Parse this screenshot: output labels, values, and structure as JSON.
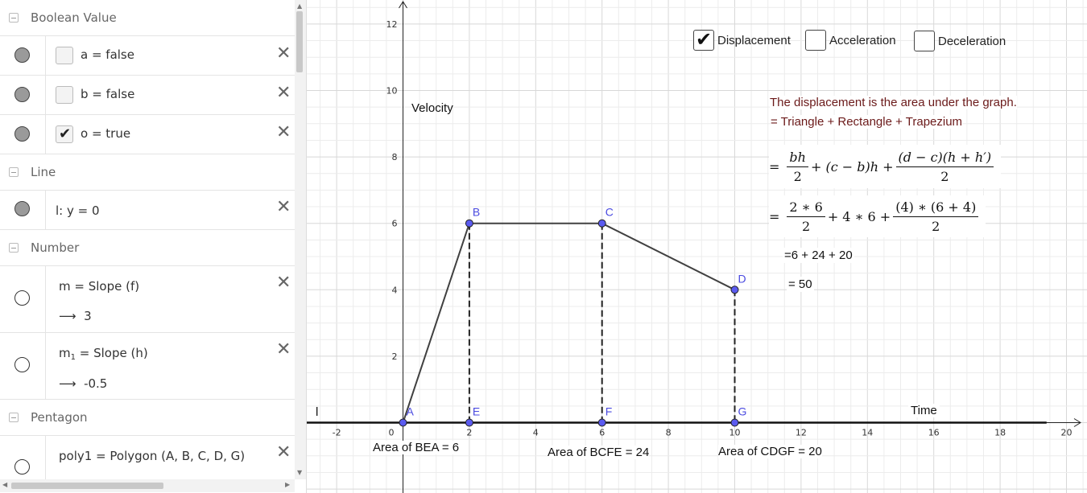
{
  "algebra": {
    "categories": {
      "boolean": "Boolean Value",
      "line": "Line",
      "number": "Number",
      "pentagon": "Pentagon"
    },
    "booleans": [
      {
        "text": "a  =  false",
        "checked": false
      },
      {
        "text": "b  =  false",
        "checked": false
      },
      {
        "text": "o  =  true",
        "checked": true
      }
    ],
    "line_item": {
      "text": "l:  y  =  0"
    },
    "numbers": [
      {
        "def_name": "m",
        "def_sub": "",
        "def_rest": "  =  Slope (f)",
        "arrow": "⟶",
        "value": "3"
      },
      {
        "def_name": "m",
        "def_sub": "1",
        "def_rest": "  =  Slope (h)",
        "arrow": "⟶",
        "value": "-0.5"
      }
    ],
    "polygon": {
      "text": "poly1  =  Polygon (A, B, C, D, G)"
    },
    "delete_glyph": "✕"
  },
  "graphics": {
    "checkboxes": [
      {
        "label": "Displacement",
        "checked": true
      },
      {
        "label": "Acceleration",
        "checked": false
      },
      {
        "label": "Deceleration",
        "checked": false
      }
    ],
    "y_axis_label": "Velocity",
    "x_axis_label": "Time",
    "line_label": "l",
    "explanation": {
      "line1": "The displacement is the area under the graph.",
      "line2": "= Triangle + Rectangle + Trapezium",
      "step3": "=6 + 24 + 20",
      "step4": "= 50"
    },
    "formula1": {
      "eq": "=",
      "f1_num": "bh",
      "f1_den": "2",
      "mid": "+ (c − b)h +",
      "f2_num": "(d − c)(h + h′)",
      "f2_den": "2"
    },
    "formula2": {
      "eq": "=",
      "f1_num": "2 ∗ 6",
      "f1_den": "2",
      "mid": "+ 4 ∗ 6  +",
      "f2_num": "(4) ∗ (6 + 4)",
      "f2_den": "2"
    },
    "area_labels": {
      "bea": "Area of  BEA = 6",
      "bcfe": "Area of  BCFE = 24",
      "cdgf": "Area of  CDGF = 20"
    },
    "points": [
      {
        "name": "A",
        "x": 0,
        "y": 0
      },
      {
        "name": "B",
        "x": 2,
        "y": 6
      },
      {
        "name": "C",
        "x": 6,
        "y": 6
      },
      {
        "name": "D",
        "x": 10,
        "y": 4
      },
      {
        "name": "E",
        "x": 2,
        "y": 0
      },
      {
        "name": "F",
        "x": 6,
        "y": 0
      },
      {
        "name": "G",
        "x": 10,
        "y": 0
      }
    ],
    "x_ticks": [
      "-2",
      "2",
      "4",
      "6",
      "8",
      "10",
      "12",
      "14",
      "16",
      "18",
      "20"
    ],
    "y_ticks": [
      "2",
      "4",
      "6",
      "8",
      "10",
      "12"
    ],
    "origin_label": "0",
    "colors": {
      "point": "#5b5bf0",
      "point_label": "#4a4ae0",
      "line": "#404040",
      "grid_minor": "#ececec",
      "grid_major": "#d8d8d8",
      "explanation": "#6b1a1a"
    }
  }
}
